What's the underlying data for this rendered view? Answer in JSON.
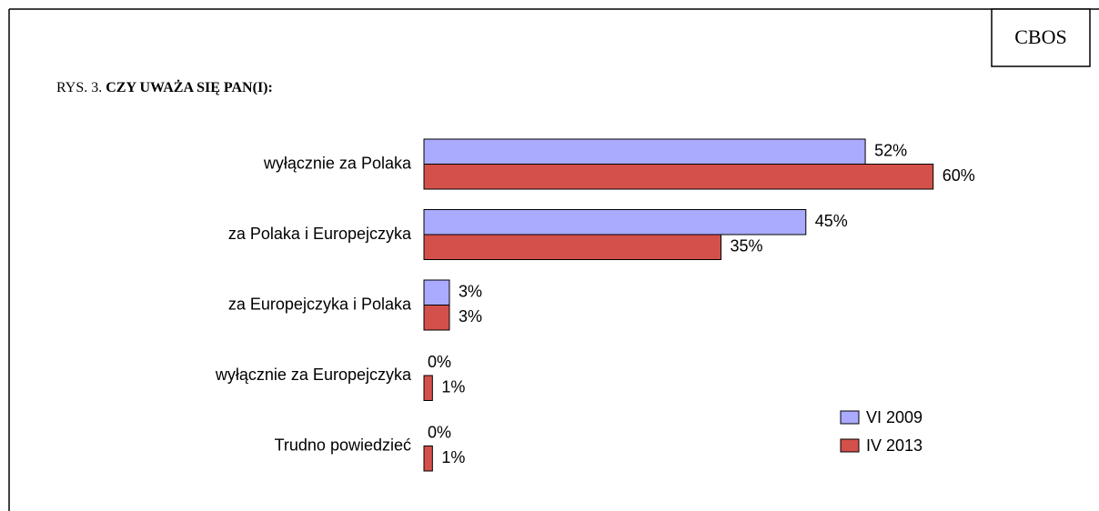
{
  "chart_data": {
    "type": "bar",
    "orientation": "horizontal",
    "source": "CBOS",
    "figure_label": "RYS. 3.",
    "title": "CZY UWAŻA SIĘ PAN(I):",
    "categories": [
      "wyłącznie za Polaka",
      "za Polaka i Europejczyka",
      "za Europejczyka i Polaka",
      "wyłącznie za Europejczyka",
      "Trudno powiedzieć"
    ],
    "series": [
      {
        "name": "VI 2009",
        "color": "#aaaaff",
        "values": [
          52,
          45,
          3,
          0,
          0
        ],
        "value_labels": [
          "52%",
          "45%",
          "3%",
          "0%",
          "0%"
        ]
      },
      {
        "name": "IV 2013",
        "color": "#d4504a",
        "values": [
          60,
          35,
          3,
          1,
          1
        ],
        "value_labels": [
          "60%",
          "35%",
          "3%",
          "1%",
          "1%"
        ]
      }
    ],
    "xlim": [
      0,
      70
    ],
    "legend": "lower right"
  }
}
